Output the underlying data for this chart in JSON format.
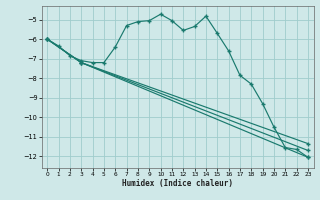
{
  "xlabel": "Humidex (Indice chaleur)",
  "bg_color": "#cfe8e8",
  "grid_color": "#a0cccc",
  "line_color": "#1a7a6e",
  "xlim": [
    -0.5,
    23.5
  ],
  "ylim": [
    -12.6,
    -4.3
  ],
  "yticks": [
    -5,
    -6,
    -7,
    -8,
    -9,
    -10,
    -11,
    -12
  ],
  "xticks": [
    0,
    1,
    2,
    3,
    4,
    5,
    6,
    7,
    8,
    9,
    10,
    11,
    12,
    13,
    14,
    15,
    16,
    17,
    18,
    19,
    20,
    21,
    22,
    23
  ],
  "line1_x": [
    0,
    1,
    2,
    3,
    4,
    5,
    6,
    7,
    8,
    9,
    10,
    11,
    12,
    13,
    14,
    15,
    16,
    17,
    18,
    19,
    20,
    21,
    22,
    23
  ],
  "line1_y": [
    -6.0,
    -6.35,
    -6.85,
    -7.1,
    -7.2,
    -7.2,
    -6.4,
    -5.3,
    -5.1,
    -5.05,
    -4.72,
    -5.05,
    -5.55,
    -5.35,
    -4.82,
    -5.7,
    -6.6,
    -7.85,
    -8.3,
    -9.3,
    -10.5,
    -11.55,
    -11.65,
    -12.05
  ],
  "line2_x": [
    0,
    3,
    23
  ],
  "line2_y": [
    -6.0,
    -7.2,
    -12.05
  ],
  "line3_x": [
    0,
    3,
    23
  ],
  "line3_y": [
    -6.0,
    -7.2,
    -11.7
  ],
  "line4_x": [
    0,
    3,
    23
  ],
  "line4_y": [
    -6.0,
    -7.2,
    -11.35
  ]
}
